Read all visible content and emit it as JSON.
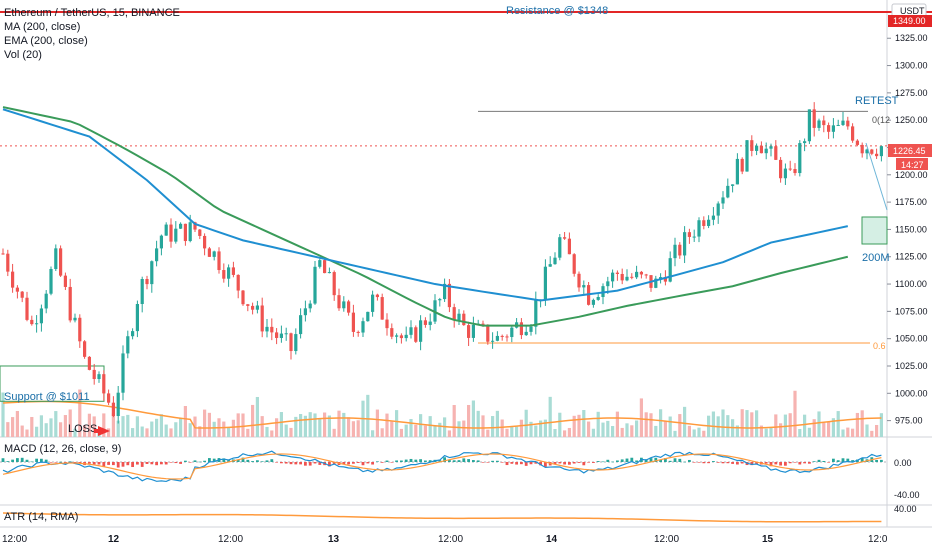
{
  "header": {
    "symbol_line": "Ethereum / TetherUS, 15, BINANCE",
    "indicators": [
      "MA (200, close)",
      "EMA (200, close)",
      "Vol (20)"
    ],
    "currency": "USDT"
  },
  "annotations": {
    "resistance": "Resistance @ $1348",
    "retest": "RETEST",
    "fib_top": "0(12",
    "ma_label": "200M",
    "fib_low": "0.6",
    "support": "Support @ $1011",
    "loss": "LOSS"
  },
  "price_tags": {
    "resistance_tag": "1349.00",
    "last_price": "1226.45",
    "countdown": "14:27"
  },
  "panes": {
    "macd_label": "MACD (12, 26, close, 9)",
    "macd_ticks": [
      "0.00",
      "-40.00"
    ],
    "atr_label": "ATR (14, RMA)",
    "atr_ticks": [
      "40.00"
    ]
  },
  "colors": {
    "up": "#26a69a",
    "down": "#ef5350",
    "ma": "#1f8fd1",
    "ema": "#3a9b5a",
    "resistance": "#e32626",
    "fib": "#ff9a3c",
    "annotation": "#1b6fa8"
  },
  "chart_data": {
    "type": "candlestick",
    "symbol": "Ethereum / TetherUS",
    "interval": "15",
    "exchange": "BINANCE",
    "x_ticks": [
      "12:00",
      "12",
      "12:00",
      "13",
      "12:00",
      "14",
      "12:00",
      "15",
      "12:0"
    ],
    "y_ticks": [
      975,
      1000,
      1025,
      1050,
      1075,
      1100,
      1125,
      1150,
      1175,
      1200,
      1225,
      1250,
      1275,
      1300,
      1325
    ],
    "ylim": [
      960,
      1360
    ],
    "close_path": [
      [
        0,
        1128
      ],
      [
        6,
        1062
      ],
      [
        11,
        1122
      ],
      [
        17,
        1030
      ],
      [
        23,
        985
      ],
      [
        28,
        1088
      ],
      [
        33,
        1145
      ],
      [
        40,
        1150
      ],
      [
        47,
        1110
      ],
      [
        54,
        1065
      ],
      [
        60,
        1040
      ],
      [
        66,
        1118
      ],
      [
        73,
        1058
      ],
      [
        77,
        1085
      ],
      [
        84,
        1045
      ],
      [
        92,
        1090
      ],
      [
        96,
        1060
      ],
      [
        103,
        1050
      ],
      [
        110,
        1070
      ],
      [
        116,
        1140
      ],
      [
        122,
        1090
      ],
      [
        128,
        1110
      ],
      [
        136,
        1100
      ],
      [
        143,
        1145
      ],
      [
        150,
        1185
      ],
      [
        157,
        1235
      ],
      [
        161,
        1210
      ],
      [
        164,
        1195
      ],
      [
        168,
        1250
      ],
      [
        172,
        1238
      ],
      [
        176,
        1245
      ],
      [
        179,
        1227
      ],
      [
        182,
        1226
      ]
    ],
    "ma_200": [
      [
        0,
        1260
      ],
      [
        18,
        1235
      ],
      [
        30,
        1195
      ],
      [
        40,
        1155
      ],
      [
        50,
        1140
      ],
      [
        60,
        1130
      ],
      [
        70,
        1120
      ],
      [
        80,
        1110
      ],
      [
        90,
        1100
      ],
      [
        100,
        1093
      ],
      [
        112,
        1085
      ],
      [
        128,
        1094
      ],
      [
        140,
        1108
      ],
      [
        150,
        1120
      ],
      [
        160,
        1138
      ],
      [
        176,
        1153
      ]
    ],
    "ema_200": [
      [
        0,
        1262
      ],
      [
        15,
        1248
      ],
      [
        25,
        1225
      ],
      [
        35,
        1200
      ],
      [
        45,
        1168
      ],
      [
        55,
        1148
      ],
      [
        65,
        1128
      ],
      [
        75,
        1108
      ],
      [
        85,
        1085
      ],
      [
        93,
        1068
      ],
      [
        100,
        1062
      ],
      [
        110,
        1062
      ],
      [
        120,
        1070
      ],
      [
        130,
        1080
      ],
      [
        142,
        1090
      ],
      [
        152,
        1098
      ],
      [
        162,
        1110
      ],
      [
        176,
        1125
      ]
    ],
    "levels": {
      "resistance": 1349,
      "fib_0": 1258,
      "fib_0_618": 1046,
      "support": 1011,
      "last": 1226.45
    }
  }
}
